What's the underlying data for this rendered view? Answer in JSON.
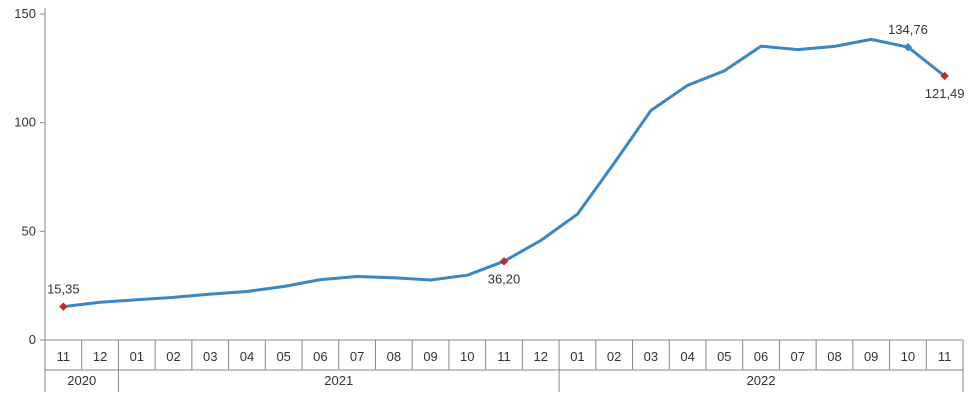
{
  "chart_data": {
    "type": "line",
    "title": "",
    "xlabel": "",
    "ylabel": "",
    "ylim": [
      0,
      150
    ],
    "yticks": [
      "0",
      "50",
      "100",
      "150"
    ],
    "grid": false,
    "legend": "none",
    "colors": {
      "line": "#3a87c2",
      "highlight_marker": "#c0282f",
      "axis": "#888888"
    },
    "categories": [
      "11",
      "12",
      "01",
      "02",
      "03",
      "04",
      "05",
      "06",
      "07",
      "08",
      "09",
      "10",
      "11",
      "12",
      "01",
      "02",
      "03",
      "04",
      "05",
      "06",
      "07",
      "08",
      "09",
      "10",
      "11"
    ],
    "years": [
      {
        "label": "2020",
        "span": 2
      },
      {
        "label": "2021",
        "span": 12
      },
      {
        "label": "2022",
        "span": 11
      }
    ],
    "series": [
      {
        "values": [
          15.35,
          17.4,
          18.5,
          19.6,
          21.1,
          22.3,
          24.6,
          27.8,
          29.2,
          28.6,
          27.6,
          29.8,
          36.2,
          45.8,
          57.9,
          81.4,
          105.6,
          117.2,
          123.8,
          135.2,
          133.6,
          135.1,
          138.3,
          134.76,
          121.49
        ]
      }
    ],
    "annotations": [
      {
        "index": 0,
        "label": "15,35",
        "marker": "diamond-red",
        "position": "above"
      },
      {
        "index": 12,
        "label": "36,20",
        "marker": "diamond-red",
        "position": "below"
      },
      {
        "index": 23,
        "label": "134,76",
        "marker": "diamond-blue",
        "position": "above"
      },
      {
        "index": 24,
        "label": "121,49",
        "marker": "diamond-red",
        "position": "below"
      }
    ]
  }
}
